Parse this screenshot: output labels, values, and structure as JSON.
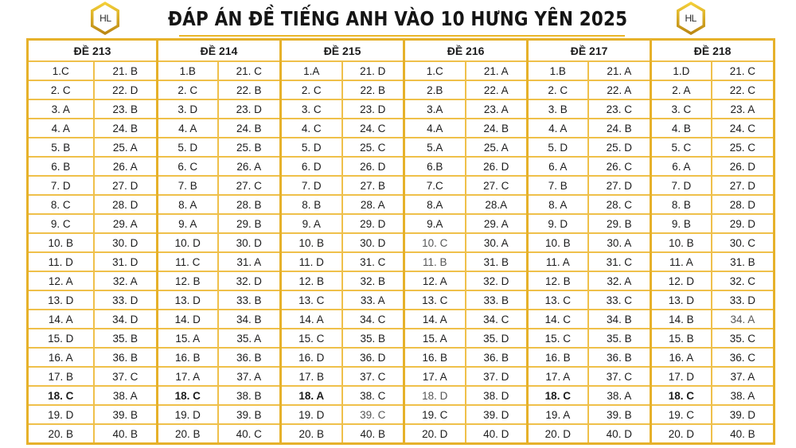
{
  "header": {
    "title": "ĐÁP ÁN ĐỀ TIẾNG ANH VÀO 10 HƯNG YÊN 2025",
    "logo_text": "HL",
    "accent_color": "#e6b12a"
  },
  "exams": [
    {
      "label": "ĐỀ 213",
      "left": [
        "1.C",
        "2. C",
        "3. A",
        "4. A",
        "5. B",
        "6. B",
        "7. D",
        "8. C",
        "9. C",
        "10. B",
        "11. D",
        "12. A",
        "13. D",
        "14. A",
        "15. D",
        "16. A",
        "17. B",
        "18. C",
        "19. D",
        "20. B"
      ],
      "right": [
        "21. B",
        "22. D",
        "23. B",
        "24. B",
        "25. A",
        "26. A",
        "27. D",
        "28. D",
        "29. A",
        "30. D",
        "31. D",
        "32. A",
        "33. D",
        "34. D",
        "35. B",
        "36. B",
        "37. C",
        "38. A",
        "39. B",
        "40. B"
      ]
    },
    {
      "label": "ĐỀ 214",
      "left": [
        "1.B",
        "2. C",
        "3. D",
        "4. A",
        "5. D",
        "6. C",
        "7. B",
        "8. A",
        "9. A",
        "10. D",
        "11. C",
        "12. B",
        "13. D",
        "14. D",
        "15. A",
        "16. B",
        "17. A",
        "18. C",
        "19. D",
        "20. B"
      ],
      "right": [
        "21. C",
        "22. B",
        "23. D",
        "24. B",
        "25. B",
        "26. A",
        "27. C",
        "28. B",
        "29. B",
        "30. D",
        "31. A",
        "32. D",
        "33. B",
        "34. B",
        "35. A",
        "36. B",
        "37. A",
        "38. B",
        "39. B",
        "40. C"
      ]
    },
    {
      "label": "ĐỀ 215",
      "left": [
        "1.A",
        "2. C",
        "3. C",
        "4. C",
        "5. D",
        "6. D",
        "7. D",
        "8. B",
        "9. A",
        "10. B",
        "11. D",
        "12. B",
        "13. C",
        "14. A",
        "15. C",
        "16. D",
        "17. B",
        "18. A",
        "19. D",
        "20. B"
      ],
      "right": [
        "21. D",
        "22. B",
        "23. D",
        "24. C",
        "25. C",
        "26. D",
        "27. B",
        "28. A",
        "29. D",
        "30. D",
        "31. C",
        "32. B",
        "33. A",
        "34. C",
        "35. B",
        "36. D",
        "37. C",
        "38. C",
        "39. C",
        "40. B"
      ]
    },
    {
      "label": "ĐỀ 216",
      "left": [
        "1.C",
        "2.B",
        "3.A",
        "4.A",
        "5.A",
        "6.B",
        "7.C",
        "8.A",
        "9.A",
        "10. C",
        "11. B",
        "12. A",
        "13. C",
        "14. A",
        "15. A",
        "16. B",
        "17. A",
        "18. D",
        "19. C",
        "20. D"
      ],
      "right": [
        "21. A",
        "22. A",
        "23. A",
        "24. B",
        "25. A",
        "26. D",
        "27. C",
        "28.A",
        "29. A",
        "30. A",
        "31. B",
        "32. D",
        "33. B",
        "34. C",
        "35. D",
        "36. B",
        "37. D",
        "38. D",
        "39. D",
        "40. D"
      ]
    },
    {
      "label": "ĐỀ 217",
      "left": [
        "1.B",
        "2. C",
        "3. B",
        "4. A",
        "5. D",
        "6. A",
        "7. B",
        "8. A",
        "9. D",
        "10. B",
        "11. A",
        "12. B",
        "13. C",
        "14. C",
        "15. C",
        "16. B",
        "17. A",
        "18. C",
        "19. A",
        "20.  D"
      ],
      "right": [
        "21. A",
        "22. A",
        "23. C",
        "24. B",
        "25. D",
        "26. C",
        "27. D",
        "28. C",
        "29. B",
        "30. A",
        "31. C",
        "32. A",
        "33. C",
        "34. B",
        "35. B",
        "36. B",
        "37. C",
        "38. A",
        "39. B",
        "40. D"
      ]
    },
    {
      "label": "ĐỀ 218",
      "left": [
        "1.D",
        "2. A",
        "3. C",
        "4. B",
        "5. C",
        "6. A",
        "7. D",
        "8. B",
        "9. B",
        "10. B",
        "11. A",
        "12. D",
        "13. D",
        "14. B",
        "15. B",
        "16. A",
        "17. D",
        "18. C",
        "19. C",
        "20. D"
      ],
      "right": [
        "21. C",
        "22. C",
        "23. A",
        "24. C",
        "25. C",
        "26. D",
        "27. D",
        "28. D",
        "29. D",
        "30. C",
        "31. B",
        "32. C",
        "33. D",
        "34. A",
        "35. C",
        "36. C",
        "37. A",
        "38. A",
        "39. D",
        "40. B"
      ]
    }
  ],
  "styling": {
    "bold_cells": [
      [
        0,
        "left",
        17
      ],
      [
        1,
        "left",
        17
      ],
      [
        2,
        "left",
        17
      ],
      [
        4,
        "left",
        17
      ],
      [
        5,
        "left",
        17
      ]
    ],
    "light_cells": [
      [
        3,
        "left",
        9
      ],
      [
        3,
        "left",
        10
      ],
      [
        3,
        "left",
        17
      ],
      [
        2,
        "right",
        18
      ],
      [
        5,
        "right",
        13
      ]
    ]
  }
}
